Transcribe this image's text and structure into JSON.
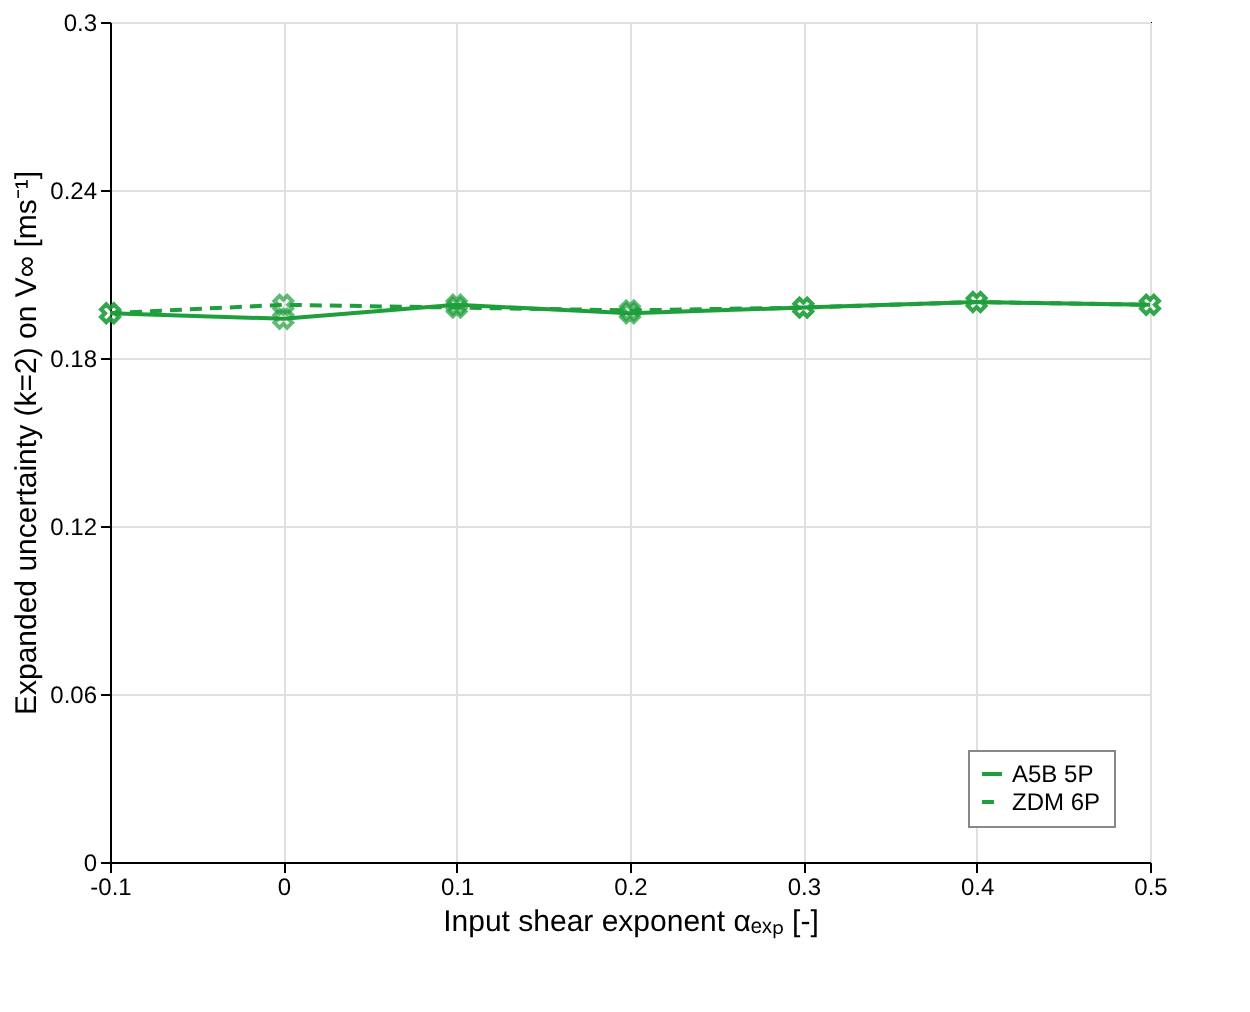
{
  "chart_data": {
    "type": "line",
    "xlabel": "Input shear exponent αₑₓₚ [-]",
    "ylabel": "Expanded uncertainty (k=2) on V∞ [ms⁻¹]",
    "x": [
      -0.1,
      0,
      0.1,
      0.2,
      0.3,
      0.4,
      0.5
    ],
    "series": [
      {
        "name": "A5B 5P",
        "color": "#1f9e3c",
        "line_style": "solid",
        "values": [
          0.196,
          0.194,
          0.199,
          0.196,
          0.198,
          0.2,
          0.199
        ]
      },
      {
        "name": "ZDM 6P",
        "color": "#1f9e3c",
        "line_style": "dashed",
        "values": [
          0.196,
          0.199,
          0.198,
          0.197,
          0.198,
          0.2,
          0.199
        ]
      }
    ],
    "xlim": [
      -0.1,
      0.5
    ],
    "xticks": [
      -0.1,
      0,
      0.1,
      0.2,
      0.3,
      0.4,
      0.5
    ],
    "ylim": [
      0,
      0.3
    ],
    "yticks": [
      0,
      0.06,
      0.12,
      0.18,
      0.24,
      0.3
    ],
    "grid": true,
    "legend": "bottom right",
    "marker": "cross"
  }
}
